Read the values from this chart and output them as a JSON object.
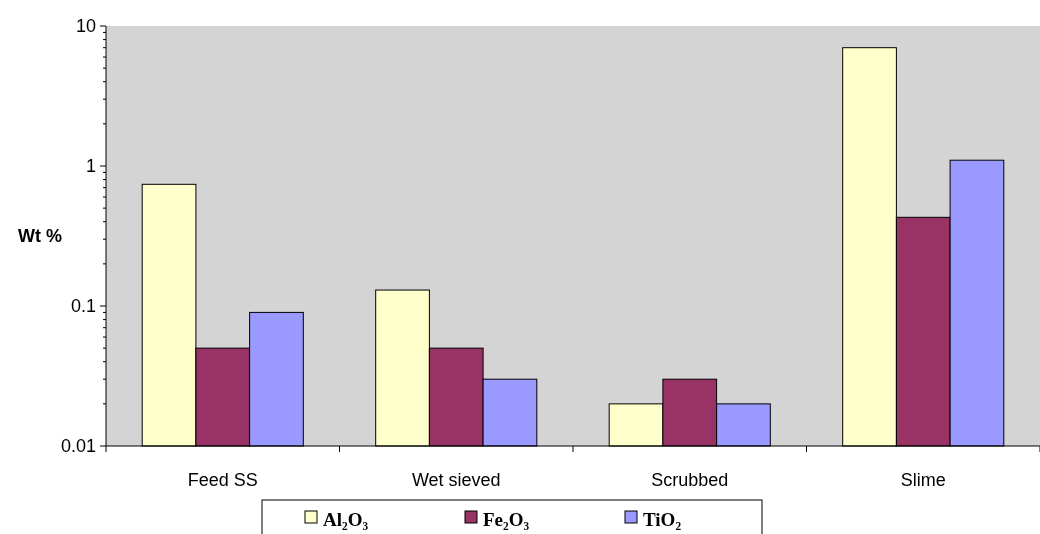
{
  "chart_data": {
    "type": "bar",
    "ylabel": "Wt %",
    "categories": [
      "Feed SS",
      "Wet sieved",
      "Scrubbed",
      "Slime"
    ],
    "series": [
      {
        "name": "Al₂O₃",
        "color": "#ffffcc",
        "values": [
          0.74,
          0.13,
          0.02,
          7
        ]
      },
      {
        "name": "Fe₂O₃",
        "color": "#993366",
        "values": [
          0.05,
          0.05,
          0.03,
          0.43
        ]
      },
      {
        "name": "TiO₂",
        "color": "#9999ff",
        "values": [
          0.09,
          0.03,
          0.02,
          1.1
        ]
      }
    ],
    "log": true,
    "ylim": [
      0.01,
      10
    ],
    "yticks": [
      0.01,
      0.1,
      1,
      10
    ],
    "legend": "bottom",
    "grid": false
  }
}
